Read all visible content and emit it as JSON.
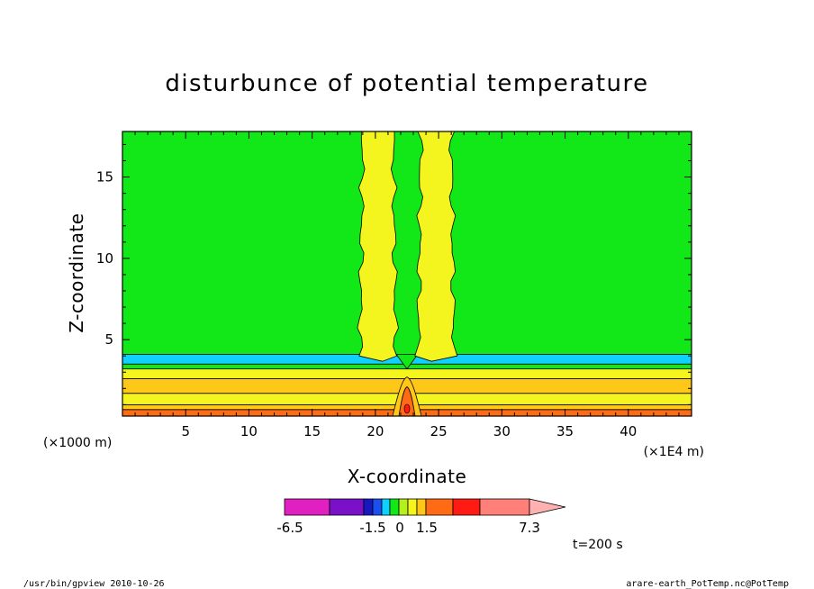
{
  "chart_data": {
    "type": "heatmap",
    "title": "disturbunce of potential temperature",
    "xlabel": "X-coordinate",
    "ylabel": "Z-coordinate",
    "x_scale_label": "(×1E4 m)",
    "y_scale_label": "(×1000 m)",
    "xlim": [
      0,
      45
    ],
    "ylim": [
      0.3,
      17.8
    ],
    "x_ticks": [
      "5",
      "10",
      "15",
      "20",
      "25",
      "30",
      "35",
      "40"
    ],
    "y_ticks": [
      "5",
      "10",
      "15"
    ],
    "colorbar": {
      "labels": [
        "-6.5",
        "-1.5",
        "0",
        "1.5",
        "7.3"
      ],
      "colors": [
        "#e020c0",
        "#7a10c8",
        "#1818c0",
        "#1a50f0",
        "#10d0ff",
        "#12e818",
        "#b4f01e",
        "#f4f41e",
        "#ffc818",
        "#ff6a14",
        "#ff1a14",
        "#ff8078",
        "#ffb0b0"
      ]
    },
    "bands": [
      {
        "z0": 0.3,
        "z1": 0.7,
        "color": "#ff6a14"
      },
      {
        "z0": 0.7,
        "z1": 1.0,
        "color": "#ffc818"
      },
      {
        "z0": 1.0,
        "z1": 1.7,
        "color": "#f4f41e"
      },
      {
        "z0": 1.7,
        "z1": 2.6,
        "color": "#ffc818"
      },
      {
        "z0": 2.6,
        "z1": 3.2,
        "color": "#f4f41e"
      },
      {
        "z0": 3.2,
        "z1": 3.5,
        "color": "#12e818"
      },
      {
        "z0": 3.5,
        "z1": 4.1,
        "color": "#10d0ff"
      }
    ],
    "plumes": [
      {
        "x_center": 20.2,
        "half_width": 1.2,
        "z_bottom": 4.0,
        "color": "#f4f41e"
      },
      {
        "x_center": 24.8,
        "half_width": 1.2,
        "z_bottom": 4.0,
        "color": "#f4f41e"
      }
    ],
    "background_color": "#12e818",
    "time_label": "t=200 s"
  },
  "footer": {
    "left": "/usr/bin/gpview   2010-10-26",
    "right": "arare-earth_PotTemp.nc@PotTemp"
  }
}
